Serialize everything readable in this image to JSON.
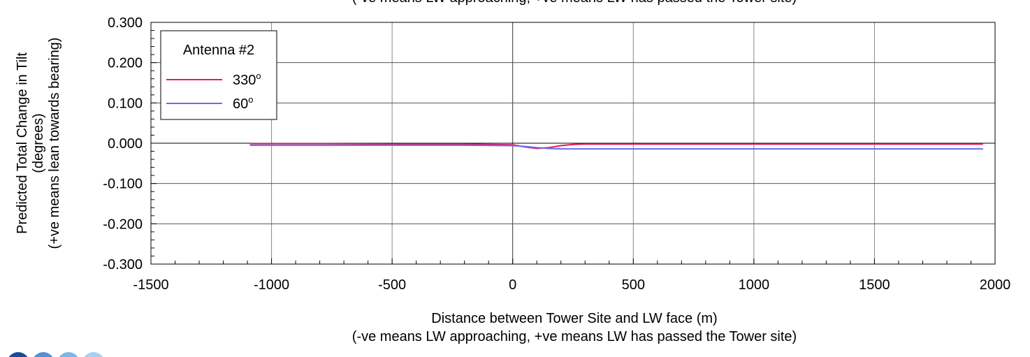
{
  "chart_data": {
    "type": "line",
    "title": "",
    "top_caption_partial": "(-ve means LW approaching, +ve means LW has passed the Tower site)",
    "xlabel": "Distance between Tower Site and LW face (m)",
    "xlabel_note": "(-ve means LW approaching, +ve means LW has passed the Tower site)",
    "ylabel_lines": [
      "Predicted Total Change in Tilt",
      "(degrees)",
      "(+ve means lean towards bearing)"
    ],
    "xlim": [
      -1500,
      2000
    ],
    "ylim": [
      -0.3,
      0.3
    ],
    "x_ticks": [
      "-1500",
      "-1000",
      "-500",
      "0",
      "500",
      "1000",
      "1500",
      "2000"
    ],
    "x_tick_values": [
      -1500,
      -1000,
      -500,
      0,
      500,
      1000,
      1500,
      2000
    ],
    "y_ticks": [
      "0.300",
      "0.200",
      "0.100",
      "0.000",
      "-0.100",
      "-0.200",
      "-0.300"
    ],
    "y_tick_values": [
      0.3,
      0.2,
      0.1,
      0.0,
      -0.1,
      -0.2,
      -0.3
    ],
    "grid": true,
    "legend": {
      "title": "Antenna #2",
      "placement": "top-left",
      "entries": [
        {
          "label": "330",
          "sup": "o"
        },
        {
          "label": "60",
          "sup": "o"
        }
      ]
    },
    "series": [
      {
        "name": "330°",
        "color": "#e8175d",
        "x": [
          -1090,
          -800,
          -500,
          -200,
          0,
          50,
          100,
          150,
          200,
          250,
          300,
          400,
          600,
          1000,
          1500,
          1950
        ],
        "y": [
          -0.001,
          -0.001,
          -0.002,
          -0.002,
          -0.004,
          -0.009,
          -0.013,
          -0.011,
          -0.006,
          -0.003,
          -0.002,
          -0.002,
          -0.002,
          -0.002,
          -0.002,
          -0.002
        ]
      },
      {
        "name": "60°",
        "color": "#6b6bea",
        "x": [
          -1090,
          -800,
          -500,
          -200,
          0,
          50,
          100,
          150,
          200,
          300,
          400,
          600,
          1000,
          1500,
          1950
        ],
        "y": [
          -0.005,
          -0.005,
          -0.005,
          -0.005,
          -0.006,
          -0.008,
          -0.011,
          -0.013,
          -0.014,
          -0.014,
          -0.014,
          -0.014,
          -0.014,
          -0.014,
          -0.014
        ]
      }
    ]
  }
}
